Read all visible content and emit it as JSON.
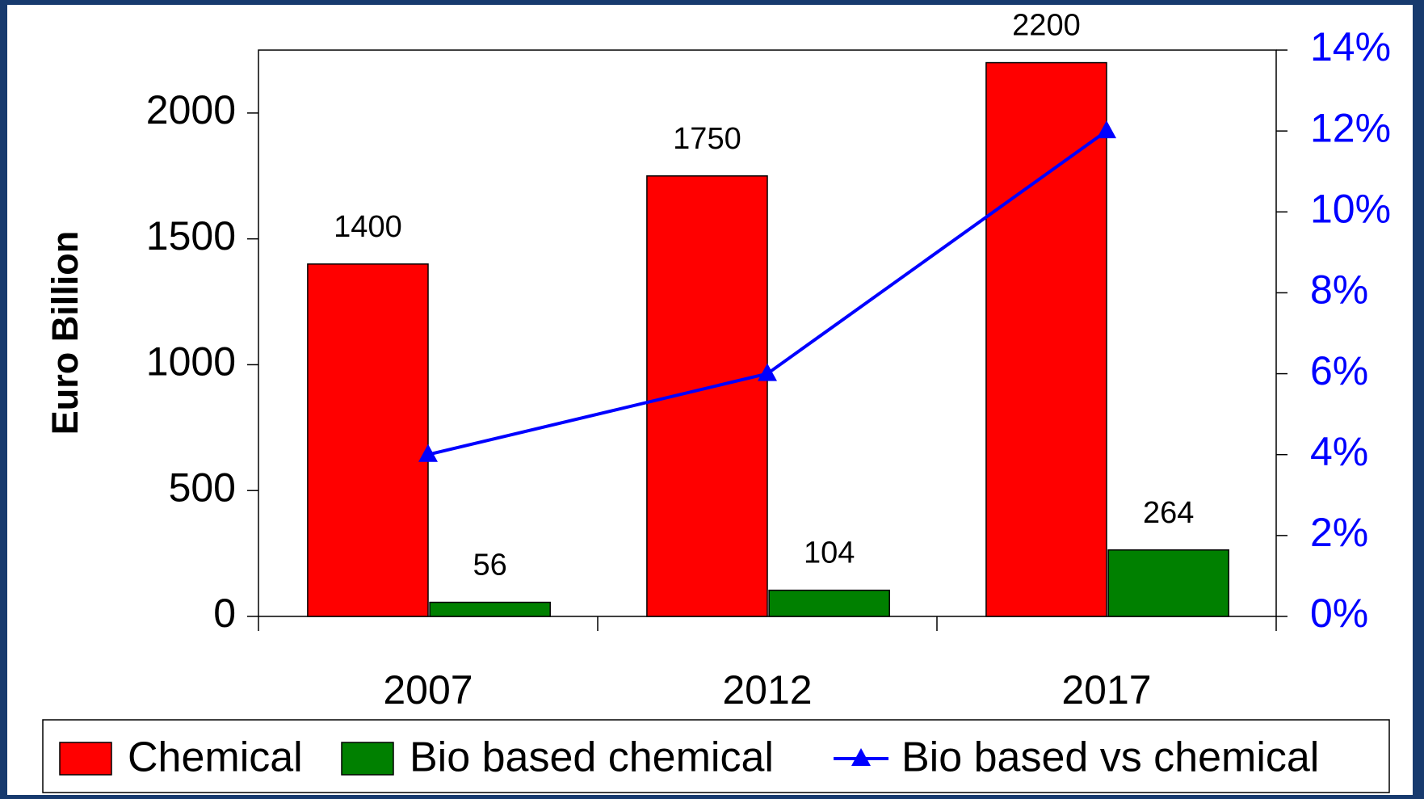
{
  "chart_data": {
    "type": "bar",
    "categories": [
      "2007",
      "2012",
      "2017"
    ],
    "series": [
      {
        "name": "Chemical",
        "color": "#ff0000",
        "values": [
          1400,
          1750,
          2200
        ]
      },
      {
        "name": "Bio based chemical",
        "color": "#008000",
        "values": [
          56,
          104,
          264
        ]
      },
      {
        "name": "Bio based vs chemical",
        "color": "#0000ff",
        "values": [
          4,
          6,
          12
        ],
        "axis": "y2",
        "type": "line"
      }
    ],
    "y_label": "Euro Billion",
    "ylim": [
      0,
      2250
    ],
    "yticks": [
      0,
      500,
      1000,
      1500,
      2000
    ],
    "y2lim": [
      0,
      14
    ],
    "y2ticks": [
      {
        "value": 0,
        "label": "0%"
      },
      {
        "value": 2,
        "label": "2%"
      },
      {
        "value": 4,
        "label": "4%"
      },
      {
        "value": 6,
        "label": "6%"
      },
      {
        "value": 8,
        "label": "8%"
      },
      {
        "value": 10,
        "label": "10%"
      },
      {
        "value": 12,
        "label": "12%"
      },
      {
        "value": 14,
        "label": "14%"
      }
    ],
    "legend": "bottom"
  }
}
